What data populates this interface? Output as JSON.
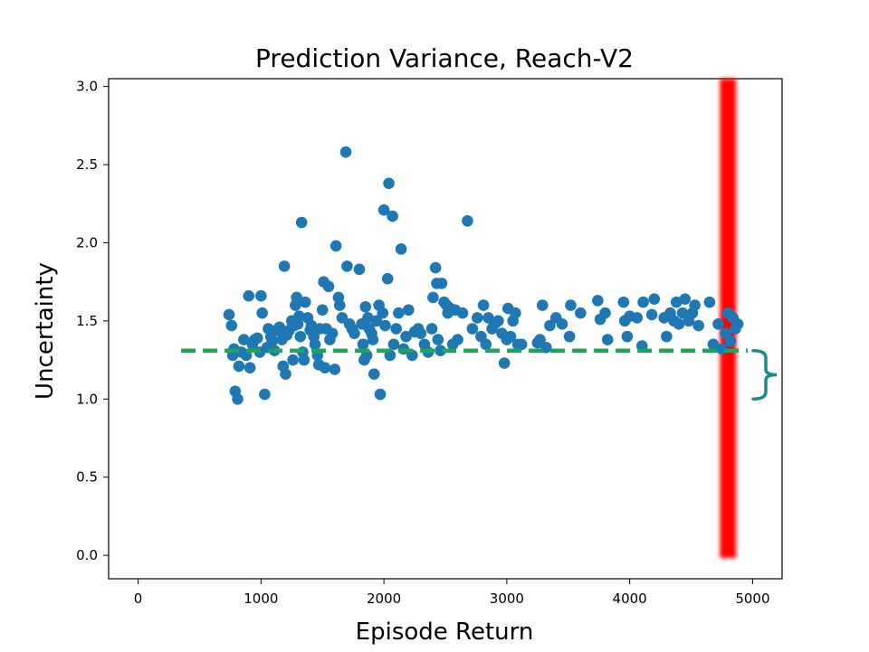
{
  "chart_data": {
    "type": "scatter",
    "title": "Prediction Variance, Reach-V2",
    "xlabel": "Episode Return",
    "ylabel": "Uncertainty",
    "xlim": [
      -240,
      5240
    ],
    "ylim": [
      -0.15,
      3.05
    ],
    "x_ticks": [
      "0",
      "1000",
      "2000",
      "3000",
      "4000",
      "5000"
    ],
    "x_tick_values": [
      0,
      1000,
      2000,
      3000,
      4000,
      5000
    ],
    "y_ticks": [
      "0.0",
      "0.5",
      "1.0",
      "1.5",
      "2.0",
      "2.5",
      "3.0"
    ],
    "y_tick_values": [
      0.0,
      0.5,
      1.0,
      1.5,
      2.0,
      2.5,
      3.0
    ],
    "grid": false,
    "colors": {
      "points": "#1f77b4",
      "threshold_line": "#1aa657",
      "highlight_band": "#ff0000",
      "brace": "#1f8a80"
    },
    "threshold": {
      "y": 1.31,
      "x_start": 350,
      "x_end": 4960
    },
    "highlight_band": {
      "x": 4800,
      "y_range": [
        0.0,
        3.05
      ]
    },
    "brace_range": [
      1.0,
      1.31
    ],
    "points": [
      [
        740,
        1.54
      ],
      [
        760,
        1.47
      ],
      [
        770,
        1.28
      ],
      [
        780,
        1.32
      ],
      [
        790,
        1.05
      ],
      [
        810,
        1.0
      ],
      [
        820,
        1.21
      ],
      [
        840,
        1.3
      ],
      [
        860,
        1.38
      ],
      [
        880,
        1.28
      ],
      [
        900,
        1.66
      ],
      [
        910,
        1.2
      ],
      [
        930,
        1.35
      ],
      [
        950,
        1.38
      ],
      [
        970,
        1.39
      ],
      [
        990,
        1.3
      ],
      [
        1000,
        1.66
      ],
      [
        1010,
        1.55
      ],
      [
        1030,
        1.03
      ],
      [
        1050,
        1.33
      ],
      [
        1060,
        1.45
      ],
      [
        1080,
        1.4
      ],
      [
        1090,
        1.37
      ],
      [
        1110,
        1.31
      ],
      [
        1130,
        1.44
      ],
      [
        1150,
        1.46
      ],
      [
        1170,
        1.38
      ],
      [
        1180,
        1.21
      ],
      [
        1190,
        1.85
      ],
      [
        1200,
        1.16
      ],
      [
        1210,
        1.41
      ],
      [
        1230,
        1.44
      ],
      [
        1250,
        1.5
      ],
      [
        1260,
        1.25
      ],
      [
        1270,
        1.47
      ],
      [
        1280,
        1.6
      ],
      [
        1290,
        1.65
      ],
      [
        1300,
        1.48
      ],
      [
        1310,
        1.53
      ],
      [
        1320,
        1.4
      ],
      [
        1330,
        2.13
      ],
      [
        1340,
        1.3
      ],
      [
        1350,
        1.25
      ],
      [
        1360,
        1.62
      ],
      [
        1380,
        1.52
      ],
      [
        1400,
        1.44
      ],
      [
        1410,
        1.47
      ],
      [
        1430,
        1.4
      ],
      [
        1440,
        1.35
      ],
      [
        1460,
        1.28
      ],
      [
        1470,
        1.22
      ],
      [
        1480,
        1.45
      ],
      [
        1500,
        1.57
      ],
      [
        1510,
        1.75
      ],
      [
        1520,
        1.2
      ],
      [
        1530,
        1.45
      ],
      [
        1550,
        1.72
      ],
      [
        1560,
        1.38
      ],
      [
        1580,
        1.42
      ],
      [
        1600,
        1.19
      ],
      [
        1610,
        1.98
      ],
      [
        1630,
        1.65
      ],
      [
        1640,
        1.6
      ],
      [
        1660,
        1.52
      ],
      [
        1690,
        2.58
      ],
      [
        1700,
        1.85
      ],
      [
        1720,
        1.48
      ],
      [
        1740,
        1.45
      ],
      [
        1760,
        1.42
      ],
      [
        1800,
        1.83
      ],
      [
        1820,
        1.48
      ],
      [
        1830,
        1.35
      ],
      [
        1840,
        1.25
      ],
      [
        1850,
        1.59
      ],
      [
        1860,
        1.28
      ],
      [
        1870,
        1.52
      ],
      [
        1880,
        1.45
      ],
      [
        1900,
        1.42
      ],
      [
        1910,
        1.38
      ],
      [
        1920,
        1.16
      ],
      [
        1940,
        1.5
      ],
      [
        1960,
        1.6
      ],
      [
        1970,
        1.03
      ],
      [
        1990,
        1.55
      ],
      [
        2000,
        2.21
      ],
      [
        2010,
        1.47
      ],
      [
        2030,
        1.77
      ],
      [
        2040,
        2.38
      ],
      [
        2050,
        1.28
      ],
      [
        2070,
        2.17
      ],
      [
        2080,
        1.35
      ],
      [
        2100,
        1.45
      ],
      [
        2120,
        1.55
      ],
      [
        2140,
        1.96
      ],
      [
        2160,
        1.32
      ],
      [
        2180,
        1.4
      ],
      [
        2200,
        1.57
      ],
      [
        2230,
        1.28
      ],
      [
        2250,
        1.43
      ],
      [
        2280,
        1.45
      ],
      [
        2300,
        1.42
      ],
      [
        2330,
        1.35
      ],
      [
        2360,
        1.3
      ],
      [
        2390,
        1.45
      ],
      [
        2400,
        1.65
      ],
      [
        2420,
        1.84
      ],
      [
        2430,
        1.74
      ],
      [
        2440,
        1.38
      ],
      [
        2460,
        1.31
      ],
      [
        2470,
        1.74
      ],
      [
        2490,
        1.62
      ],
      [
        2510,
        1.6
      ],
      [
        2520,
        1.55
      ],
      [
        2540,
        1.58
      ],
      [
        2560,
        1.35
      ],
      [
        2580,
        1.57
      ],
      [
        2600,
        1.38
      ],
      [
        2640,
        1.55
      ],
      [
        2680,
        2.14
      ],
      [
        2720,
        1.45
      ],
      [
        2760,
        1.52
      ],
      [
        2790,
        1.4
      ],
      [
        2810,
        1.6
      ],
      [
        2830,
        1.35
      ],
      [
        2850,
        1.52
      ],
      [
        2880,
        1.45
      ],
      [
        2900,
        1.48
      ],
      [
        2930,
        1.5
      ],
      [
        2960,
        1.42
      ],
      [
        2980,
        1.23
      ],
      [
        3000,
        1.38
      ],
      [
        3010,
        1.58
      ],
      [
        3030,
        1.4
      ],
      [
        3050,
        1.5
      ],
      [
        3070,
        1.55
      ],
      [
        3090,
        1.35
      ],
      [
        3120,
        1.35
      ],
      [
        3250,
        1.36
      ],
      [
        3270,
        1.38
      ],
      [
        3290,
        1.6
      ],
      [
        3320,
        1.33
      ],
      [
        3350,
        1.47
      ],
      [
        3400,
        1.52
      ],
      [
        3450,
        1.48
      ],
      [
        3510,
        1.4
      ],
      [
        3520,
        1.6
      ],
      [
        3600,
        1.55
      ],
      [
        3740,
        1.63
      ],
      [
        3760,
        1.51
      ],
      [
        3800,
        1.55
      ],
      [
        3820,
        1.38
      ],
      [
        3950,
        1.62
      ],
      [
        3960,
        1.5
      ],
      [
        3980,
        1.4
      ],
      [
        4000,
        1.53
      ],
      [
        4060,
        1.52
      ],
      [
        4100,
        1.34
      ],
      [
        4110,
        1.62
      ],
      [
        4180,
        1.54
      ],
      [
        4200,
        1.64
      ],
      [
        4280,
        1.52
      ],
      [
        4300,
        1.4
      ],
      [
        4330,
        1.55
      ],
      [
        4360,
        1.5
      ],
      [
        4380,
        1.62
      ],
      [
        4400,
        1.48
      ],
      [
        4430,
        1.55
      ],
      [
        4450,
        1.64
      ],
      [
        4480,
        1.5
      ],
      [
        4510,
        1.55
      ],
      [
        4530,
        1.6
      ],
      [
        4560,
        1.47
      ],
      [
        4650,
        1.62
      ],
      [
        4680,
        1.35
      ],
      [
        4720,
        1.48
      ],
      [
        4750,
        1.32
      ],
      [
        4780,
        1.42
      ],
      [
        4800,
        1.55
      ],
      [
        4820,
        1.37
      ],
      [
        4840,
        1.52
      ],
      [
        4860,
        1.45
      ],
      [
        4880,
        1.48
      ]
    ]
  }
}
